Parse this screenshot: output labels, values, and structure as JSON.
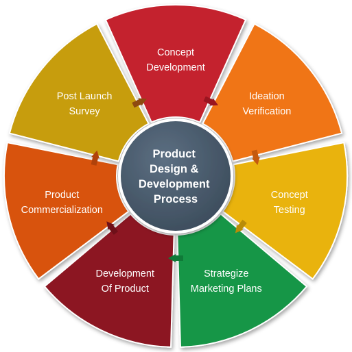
{
  "hub": {
    "lines": [
      "Product",
      "Design &",
      "Development",
      "Process"
    ],
    "color": "#4a5c6e"
  },
  "segments": [
    {
      "id": "concept-development",
      "lines": [
        "Concept",
        "Development"
      ],
      "color": "#c4202f",
      "arrow_color": "#9a1520"
    },
    {
      "id": "ideation-verification",
      "lines": [
        "Ideation",
        "Verification"
      ],
      "color": "#f07418",
      "arrow_color": "#c45a0e"
    },
    {
      "id": "concept-testing",
      "lines": [
        "Concept",
        "Testing"
      ],
      "color": "#e9b30d",
      "arrow_color": "#b98c08"
    },
    {
      "id": "strategize-marketing-plans",
      "lines": [
        "Strategize",
        "Marketing Plans"
      ],
      "color": "#179647",
      "arrow_color": "#0f7a38"
    },
    {
      "id": "development-of-product",
      "lines": [
        "Development",
        "Of Product"
      ],
      "color": "#8c1822",
      "arrow_color": "#6e1019"
    },
    {
      "id": "product-commercialization",
      "lines": [
        "Product",
        "Commercialization"
      ],
      "color": "#d8530d",
      "arrow_color": "#b0420a"
    },
    {
      "id": "post-launch-survey",
      "lines": [
        "Post Launch",
        "Survey"
      ],
      "color": "#c79d10",
      "arrow_color": "#8e4a10"
    }
  ]
}
